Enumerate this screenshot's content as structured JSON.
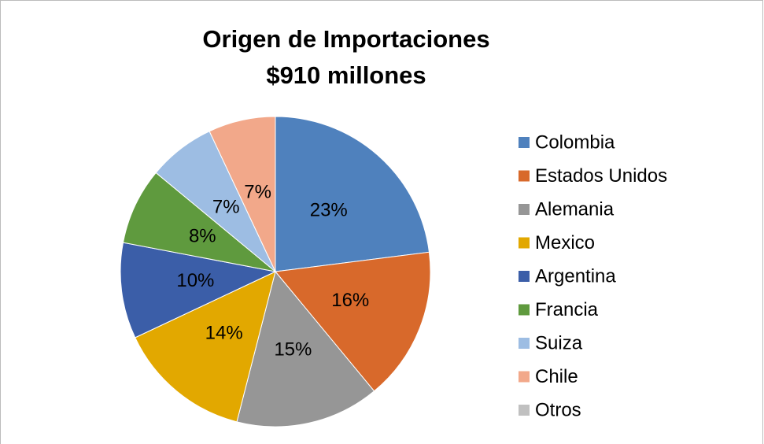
{
  "chart_data": {
    "type": "pie",
    "title": "Origen de Importaciones",
    "subtitle": "$910 millones",
    "categories": [
      "Colombia",
      "Estados Unidos",
      "Alemania",
      "Mexico",
      "Argentina",
      "Francia",
      "Suiza",
      "Chile",
      "Otros"
    ],
    "values": [
      23,
      16,
      15,
      14,
      10,
      8,
      7,
      7,
      0
    ],
    "value_labels": [
      "23%",
      "16%",
      "15%",
      "14%",
      "10%",
      "8%",
      "7%",
      "7%",
      null
    ],
    "colors": [
      "#4f81bd",
      "#d8692b",
      "#969696",
      "#e2a800",
      "#3b5ea8",
      "#5f9a3e",
      "#9dbde3",
      "#f2a88a",
      "#c0c0c0"
    ],
    "legend": "right"
  }
}
